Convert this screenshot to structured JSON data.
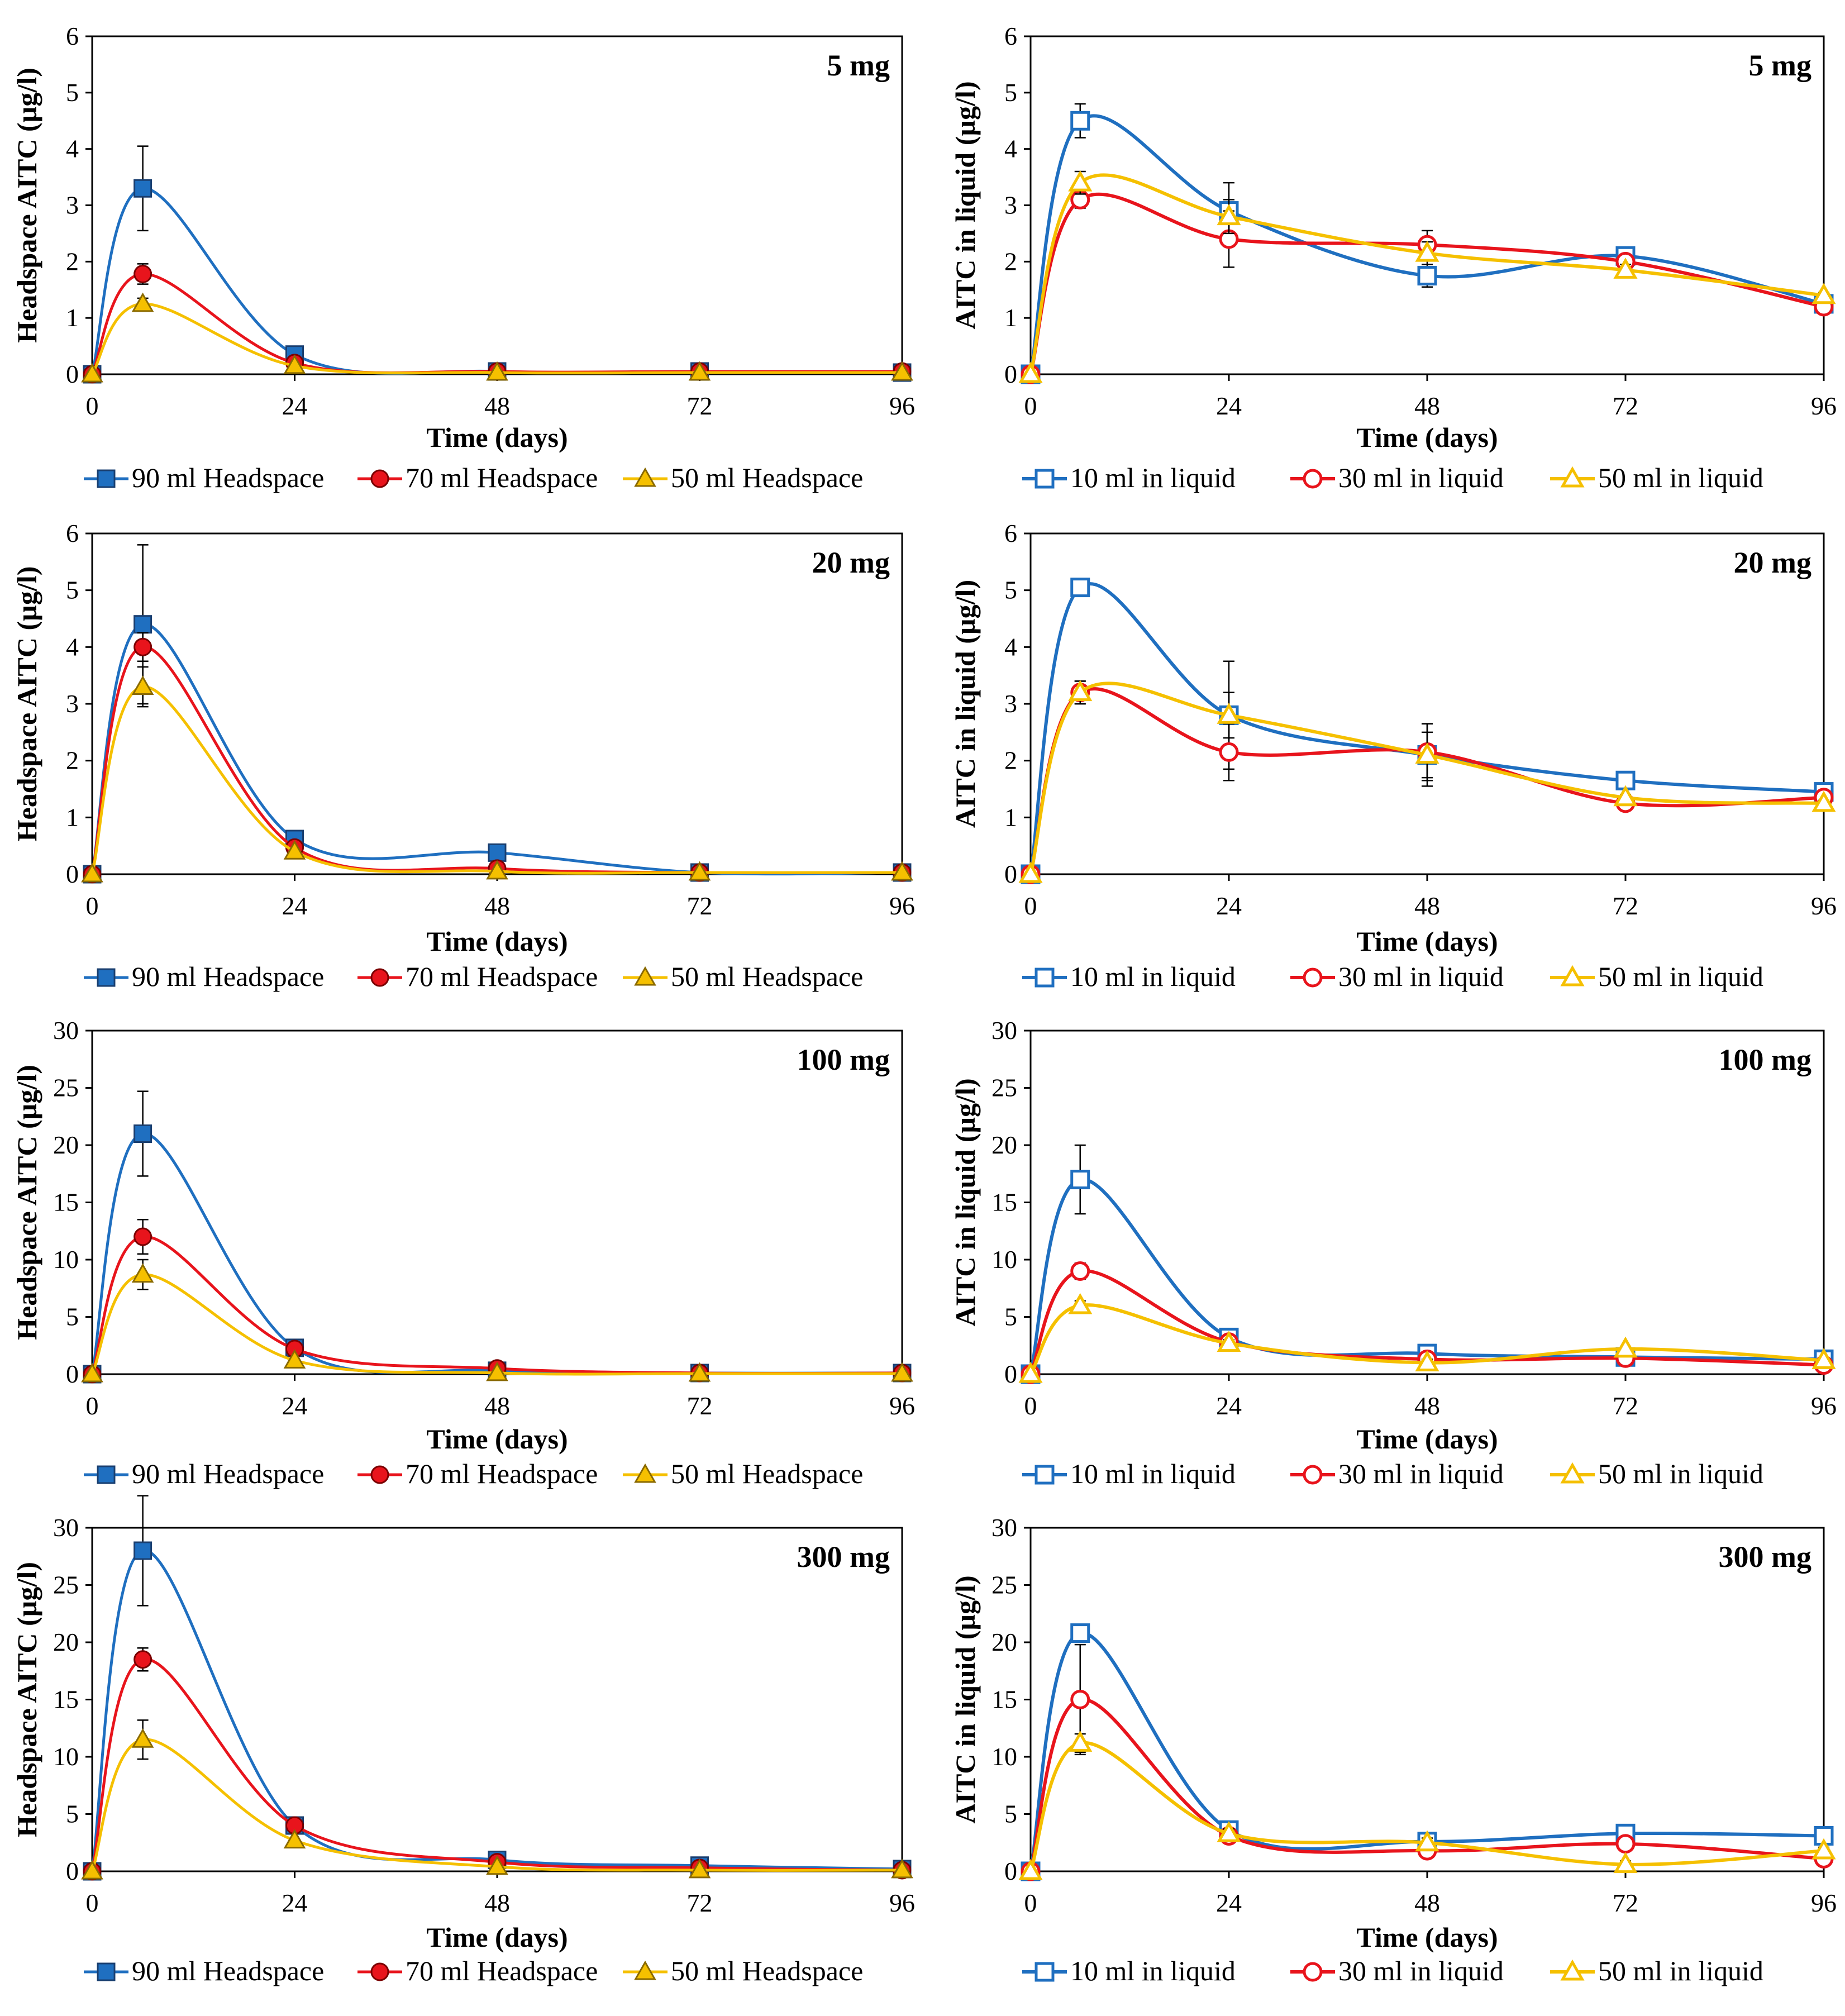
{
  "colors": {
    "blue": "#1f6fc0",
    "red": "#e8141c",
    "yellow": "#f5c000"
  },
  "chart_data": [
    {
      "type": "line",
      "kind": "headspace",
      "title": "5 mg",
      "xlabel": "Time (days)",
      "ylabel": "Headspace AITC (µg/l)",
      "xlim": [
        0,
        96
      ],
      "ylim": [
        0,
        6
      ],
      "xticks": [
        0,
        24,
        48,
        72,
        96
      ],
      "yticks": [
        0,
        1,
        2,
        3,
        4,
        5,
        6
      ],
      "grid": false,
      "legend": "bottom",
      "x": [
        0,
        6,
        24,
        48,
        72,
        96
      ],
      "series": [
        {
          "name": "90 ml Headspace",
          "values": [
            0,
            3.3,
            0.35,
            0.05,
            0.05,
            0.03
          ],
          "err": [
            0,
            0.75,
            0,
            0,
            0,
            0
          ]
        },
        {
          "name": "70 ml Headspace",
          "values": [
            0,
            1.78,
            0.2,
            0.05,
            0.05,
            0.05
          ],
          "err": [
            0,
            0.18,
            0,
            0,
            0,
            0
          ]
        },
        {
          "name": "50 ml  Headspace",
          "values": [
            0,
            1.25,
            0.15,
            0.03,
            0.03,
            0.03
          ],
          "err": [
            0,
            0.1,
            0,
            0,
            0,
            0
          ]
        }
      ]
    },
    {
      "type": "line",
      "kind": "liquid",
      "title": "5 mg",
      "xlabel": "Time (days)",
      "ylabel": "AITC in liquid (µg/l)",
      "xlim": [
        0,
        96
      ],
      "ylim": [
        0,
        6
      ],
      "xticks": [
        0,
        24,
        48,
        72,
        96
      ],
      "yticks": [
        0,
        1,
        2,
        3,
        4,
        5,
        6
      ],
      "grid": false,
      "legend": "bottom",
      "x": [
        0,
        6,
        24,
        48,
        72,
        96
      ],
      "series": [
        {
          "name": "10 ml in liquid",
          "values": [
            0,
            4.5,
            2.9,
            1.75,
            2.1,
            1.25
          ],
          "err": [
            0,
            0.3,
            0.5,
            0.2,
            0.1,
            0.05
          ]
        },
        {
          "name": "30 ml in liquid",
          "values": [
            0,
            3.1,
            2.4,
            2.3,
            2.0,
            1.2
          ],
          "err": [
            0,
            0.15,
            0.5,
            0.25,
            0.1,
            0.05
          ]
        },
        {
          "name": "50 ml  in liquid",
          "values": [
            0,
            3.4,
            2.8,
            2.15,
            1.85,
            1.4
          ],
          "err": [
            0,
            0.2,
            0.3,
            0.2,
            0.1,
            0.05
          ]
        }
      ]
    },
    {
      "type": "line",
      "kind": "headspace",
      "title": "20 mg",
      "xlabel": "Time (days)",
      "ylabel": "Headspace AITC (µg/l)",
      "xlim": [
        0,
        96
      ],
      "ylim": [
        0,
        6
      ],
      "xticks": [
        0,
        24,
        48,
        72,
        96
      ],
      "yticks": [
        0,
        1,
        2,
        3,
        4,
        5,
        6
      ],
      "grid": false,
      "legend": "bottom",
      "x": [
        0,
        6,
        24,
        48,
        72,
        96
      ],
      "series": [
        {
          "name": "90 ml Headspace",
          "values": [
            0,
            4.4,
            0.62,
            0.38,
            0.03,
            0.03
          ],
          "err": [
            0,
            1.4,
            0,
            0,
            0,
            0
          ]
        },
        {
          "name": "70 ml Headspace",
          "values": [
            0,
            4.0,
            0.47,
            0.1,
            0.03,
            0.03
          ],
          "err": [
            0,
            0.25,
            0,
            0,
            0,
            0
          ]
        },
        {
          "name": "50 ml  Headspace",
          "values": [
            0,
            3.3,
            0.4,
            0.05,
            0.03,
            0.03
          ],
          "err": [
            0,
            0.35,
            0,
            0,
            0,
            0
          ]
        }
      ]
    },
    {
      "type": "line",
      "kind": "liquid",
      "title": "20 mg",
      "xlabel": "Time (days)",
      "ylabel": "AITC in liquid (µg/l)",
      "xlim": [
        0,
        96
      ],
      "ylim": [
        0,
        6
      ],
      "xticks": [
        0,
        24,
        48,
        72,
        96
      ],
      "yticks": [
        0,
        1,
        2,
        3,
        4,
        5,
        6
      ],
      "grid": false,
      "legend": "bottom",
      "x": [
        0,
        6,
        24,
        48,
        72,
        96
      ],
      "series": [
        {
          "name": "10 ml in liquid",
          "values": [
            0,
            5.05,
            2.8,
            2.1,
            1.65,
            1.45
          ],
          "err": [
            0,
            0.1,
            0.95,
            0.55,
            0.05,
            0.05
          ]
        },
        {
          "name": "30 ml in liquid",
          "values": [
            0,
            3.2,
            2.15,
            2.15,
            1.25,
            1.35
          ],
          "err": [
            0,
            0.2,
            0.5,
            0.5,
            0.05,
            0.05
          ]
        },
        {
          "name": "50 ml  in liquid",
          "values": [
            0,
            3.2,
            2.8,
            2.1,
            1.35,
            1.25
          ],
          "err": [
            0,
            0.2,
            0.4,
            0.4,
            0.05,
            0.05
          ]
        }
      ]
    },
    {
      "type": "line",
      "kind": "headspace",
      "title": "100 mg",
      "xlabel": "Time (days)",
      "ylabel": "Headspace AITC (µg/l)",
      "xlim": [
        0,
        96
      ],
      "ylim": [
        0,
        30
      ],
      "xticks": [
        0,
        24,
        48,
        72,
        96
      ],
      "yticks": [
        0,
        5,
        10,
        15,
        20,
        25,
        30
      ],
      "grid": false,
      "legend": "bottom",
      "x": [
        0,
        6,
        24,
        48,
        72,
        96
      ],
      "series": [
        {
          "name": "90 ml Headspace",
          "values": [
            0,
            21.0,
            2.3,
            0.3,
            0.1,
            0.1
          ],
          "err": [
            0,
            3.7,
            0,
            0,
            0,
            0
          ]
        },
        {
          "name": "70 ml Headspace",
          "values": [
            0,
            12.0,
            2.2,
            0.5,
            0.1,
            0.1
          ],
          "err": [
            0,
            1.5,
            0,
            0,
            0,
            0
          ]
        },
        {
          "name": "50 ml  Headspace",
          "values": [
            0,
            8.7,
            1.2,
            0.1,
            0.05,
            0.05
          ],
          "err": [
            0,
            1.3,
            0,
            0,
            0,
            0
          ]
        }
      ]
    },
    {
      "type": "line",
      "kind": "liquid",
      "title": "100 mg",
      "xlabel": "Time (days)",
      "ylabel": "AITC in liquid (µg/l)",
      "xlim": [
        0,
        96
      ],
      "ylim": [
        0,
        30
      ],
      "xticks": [
        0,
        24,
        48,
        72,
        96
      ],
      "yticks": [
        0,
        5,
        10,
        15,
        20,
        25,
        30
      ],
      "grid": false,
      "legend": "bottom",
      "x": [
        0,
        6,
        24,
        48,
        72,
        96
      ],
      "series": [
        {
          "name": "10 ml in liquid",
          "values": [
            0,
            17.0,
            3.2,
            1.8,
            1.5,
            1.3
          ],
          "err": [
            0,
            3.0,
            0.3,
            0.3,
            0.2,
            0.2
          ]
        },
        {
          "name": "30 ml in liquid",
          "values": [
            0,
            9.0,
            2.8,
            1.3,
            1.4,
            0.8
          ],
          "err": [
            0,
            0.7,
            0.3,
            0.3,
            0.2,
            0.2
          ]
        },
        {
          "name": "50 ml  in liquid",
          "values": [
            0,
            6.0,
            2.7,
            1.0,
            2.2,
            1.2
          ],
          "err": [
            0,
            0.4,
            0.3,
            0.3,
            0.2,
            0.2
          ]
        }
      ]
    },
    {
      "type": "line",
      "kind": "headspace",
      "title": "300 mg",
      "xlabel": "Time (days)",
      "ylabel": "Headspace AITC (µg/l)",
      "xlim": [
        0,
        96
      ],
      "ylim": [
        0,
        30
      ],
      "xticks": [
        0,
        24,
        48,
        72,
        96
      ],
      "yticks": [
        0,
        5,
        10,
        15,
        20,
        25,
        30
      ],
      "grid": false,
      "legend": "bottom",
      "x": [
        0,
        6,
        24,
        48,
        72,
        96
      ],
      "series": [
        {
          "name": "90 ml Headspace",
          "values": [
            0,
            28.0,
            4.0,
            1.0,
            0.5,
            0.2
          ],
          "err": [
            0,
            4.8,
            0,
            0,
            0,
            0
          ]
        },
        {
          "name": "70 ml Headspace",
          "values": [
            0,
            18.5,
            4.0,
            0.8,
            0.3,
            0.1
          ],
          "err": [
            0,
            1.0,
            0,
            0,
            0,
            0
          ]
        },
        {
          "name": "50 ml  Headspace",
          "values": [
            0,
            11.5,
            2.7,
            0.4,
            0.1,
            0.1
          ],
          "err": [
            0,
            1.7,
            0,
            0,
            0,
            0
          ]
        }
      ]
    },
    {
      "type": "line",
      "kind": "liquid",
      "title": "300 mg",
      "xlabel": "Time (days)",
      "ylabel": "AITC  in liquid  (µg/l)",
      "xlim": [
        0,
        96
      ],
      "ylim": [
        0,
        30
      ],
      "xticks": [
        0,
        24,
        48,
        72,
        96
      ],
      "yticks": [
        0,
        5,
        10,
        15,
        20,
        25,
        30
      ],
      "grid": false,
      "legend": "bottom",
      "x": [
        0,
        6,
        24,
        48,
        72,
        96
      ],
      "series": [
        {
          "name": "10 ml in liquid",
          "values": [
            0,
            20.8,
            3.6,
            2.6,
            3.3,
            3.1
          ],
          "err": [
            0,
            0.4,
            0.4,
            0.4,
            0.3,
            0.3
          ]
        },
        {
          "name": "30 ml in liquid",
          "values": [
            0,
            15.0,
            3.1,
            1.8,
            2.4,
            1.1
          ],
          "err": [
            0,
            4.8,
            0.4,
            0.4,
            0.3,
            0.3
          ]
        },
        {
          "name": "50 ml  in liquid",
          "values": [
            0,
            11.2,
            3.3,
            2.5,
            0.6,
            1.8
          ],
          "err": [
            0,
            0.8,
            0.4,
            0.4,
            0.3,
            0.3
          ]
        }
      ]
    }
  ]
}
